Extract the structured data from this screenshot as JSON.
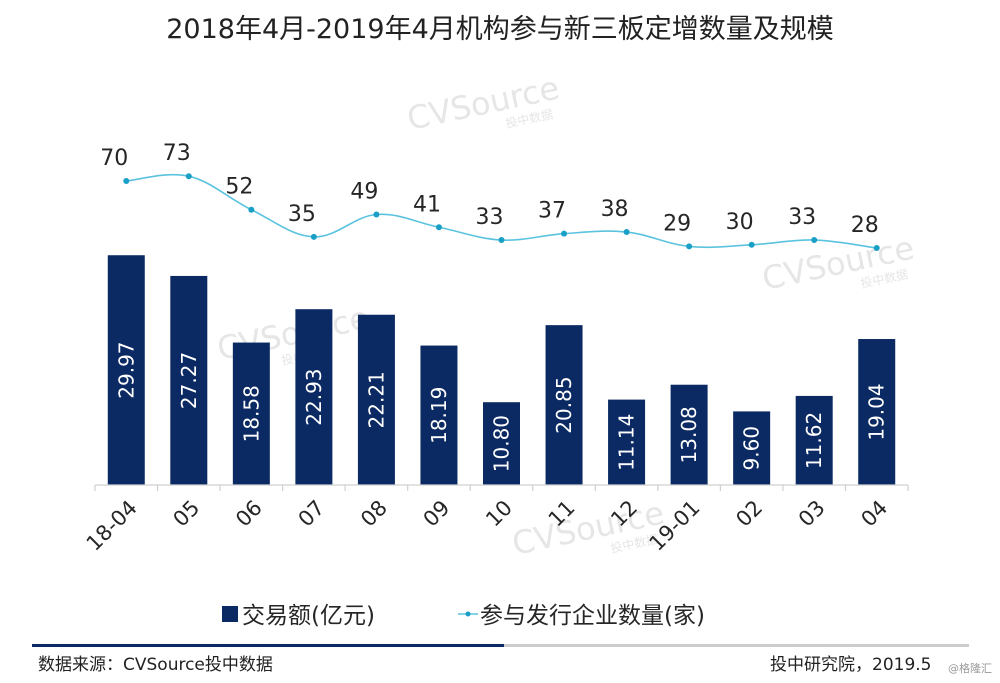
{
  "chart_data": {
    "type": "bar",
    "title": "2018年4月-2019年4月机构参与新三板定增数量及规模",
    "categories": [
      "18-04",
      "05",
      "06",
      "07",
      "08",
      "09",
      "10",
      "11",
      "12",
      "19-01",
      "02",
      "03",
      "04"
    ],
    "series": [
      {
        "name": "交易额(亿元)",
        "type": "bar",
        "color": "#0b2a63",
        "values": [
          29.97,
          27.27,
          18.58,
          22.93,
          22.21,
          18.19,
          10.8,
          20.85,
          11.14,
          13.08,
          9.6,
          11.62,
          19.04
        ],
        "labels": [
          "29.97",
          "27.27",
          "18.58",
          "22.93",
          "22.21",
          "18.19",
          "10.80",
          "20.85",
          "11.14",
          "13.08",
          "9.60",
          "11.62",
          "19.04"
        ]
      },
      {
        "name": "参与发行企业数量(家)",
        "type": "line",
        "color": "#5bc3df",
        "marker_color": "#1a9fc7",
        "values": [
          70,
          73,
          52,
          35,
          49,
          41,
          33,
          37,
          38,
          29,
          30,
          33,
          28
        ],
        "labels": [
          "70",
          "73",
          "52",
          "35",
          "49",
          "41",
          "33",
          "37",
          "38",
          "29",
          "30",
          "33",
          "28"
        ]
      }
    ],
    "bar_ylim": [
      0,
      30
    ],
    "line_ylim": [
      0,
      75
    ],
    "grid": false,
    "legend_position": "bottom"
  },
  "footer": {
    "source": "数据来源：CVSource投中数据",
    "publisher": "投中研究院，2019.5",
    "credit": "@格隆汇"
  },
  "watermark": {
    "brand": "CVSource",
    "sub": "投中数据"
  },
  "colors": {
    "footer_line_dark": "#0b2a63",
    "footer_line_light": "#cccccc",
    "axis": "#d0d0d0"
  }
}
